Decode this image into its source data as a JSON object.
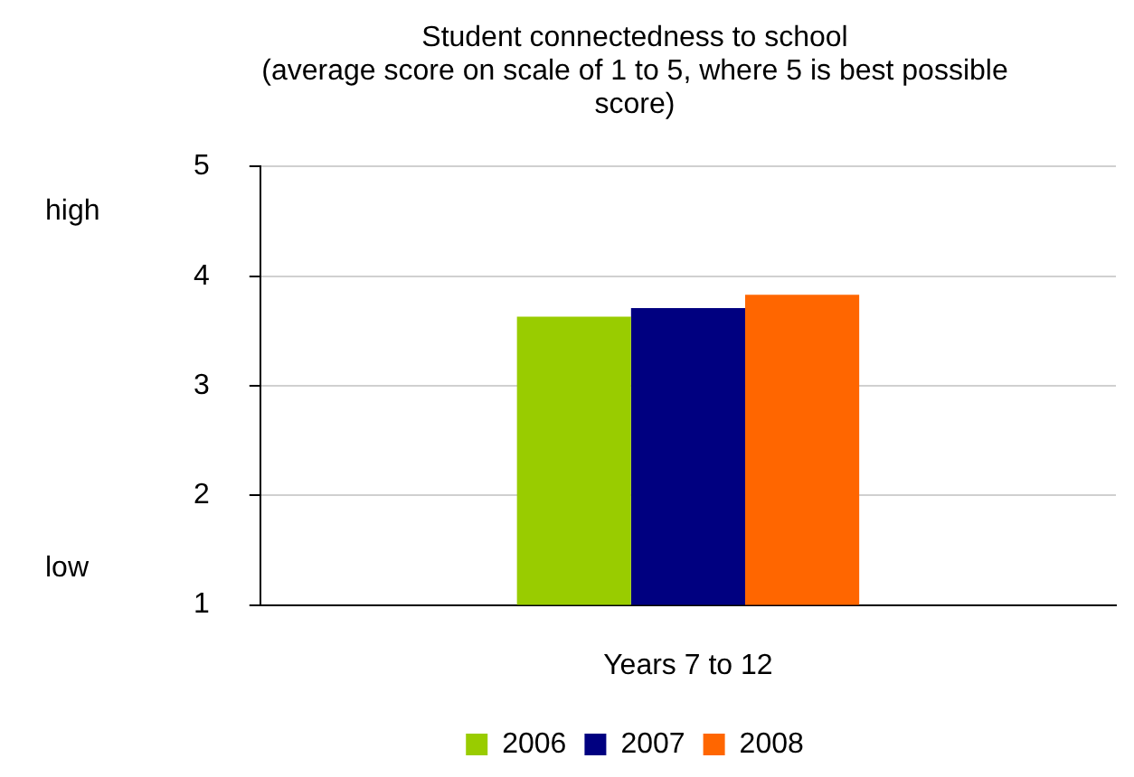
{
  "chart_data": {
    "type": "bar",
    "title": [
      "Student connectedness to school",
      "(average score on scale of 1 to 5, where 5 is best possible",
      "score)"
    ],
    "categories": [
      "Years 7 to 12"
    ],
    "series": [
      {
        "name": "2006",
        "color": "#99cc00",
        "values": [
          3.63
        ]
      },
      {
        "name": "2007",
        "color": "#000080",
        "values": [
          3.71
        ]
      },
      {
        "name": "2008",
        "color": "#ff6600",
        "values": [
          3.83
        ]
      }
    ],
    "ylim": [
      1,
      5
    ],
    "yticks": [
      1,
      2,
      3,
      4,
      5
    ],
    "grid": "y",
    "legend": "bottom",
    "annotations": [
      "high",
      "low"
    ]
  }
}
